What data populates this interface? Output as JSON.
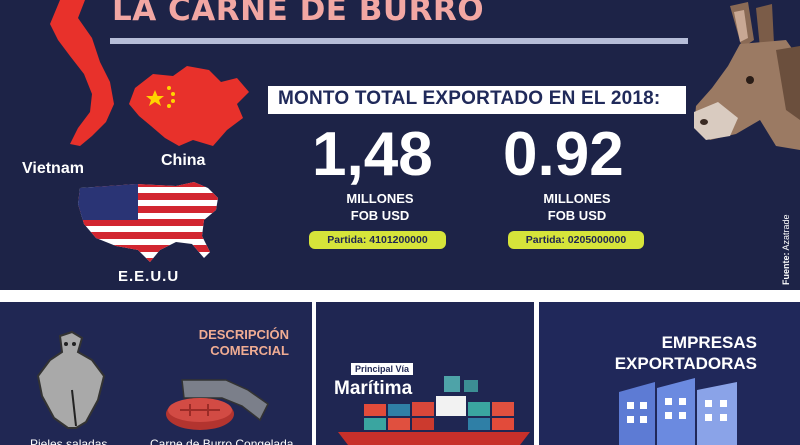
{
  "header": {
    "title": "LA CARNE DE BURRO"
  },
  "countries": {
    "vietnam": "Vietnam",
    "china": "China",
    "usa": "E.E.U.U"
  },
  "export": {
    "heading": "MONTO TOTAL EXPORTADO EN EL 2018:",
    "items": [
      {
        "value": "1,48",
        "unit_line1": "MILLONES",
        "unit_line2": "FOB USD",
        "partida": "Partida: 4101200000"
      },
      {
        "value": "0.92",
        "unit_line1": "MILLONES",
        "unit_line2": "FOB USD",
        "partida": "Partida: 0205000000"
      }
    ]
  },
  "source": {
    "label": "Fuente:",
    "name": "Azatrade"
  },
  "description": {
    "heading_line1": "DESCRIPCIÓN",
    "heading_line2": "COMERCIAL",
    "item1": "Pieles saladas",
    "item2": "Carne de Burro Congelada"
  },
  "shipping": {
    "badge": "Principal Vía",
    "mode": "Marítima"
  },
  "companies": {
    "heading_line1": "EMPRESAS",
    "heading_line2": "EXPORTADORAS"
  },
  "colors": {
    "background": "#1d2347",
    "title": "#f2a7a3",
    "accent": "#d6e43a",
    "white": "#ffffff"
  }
}
